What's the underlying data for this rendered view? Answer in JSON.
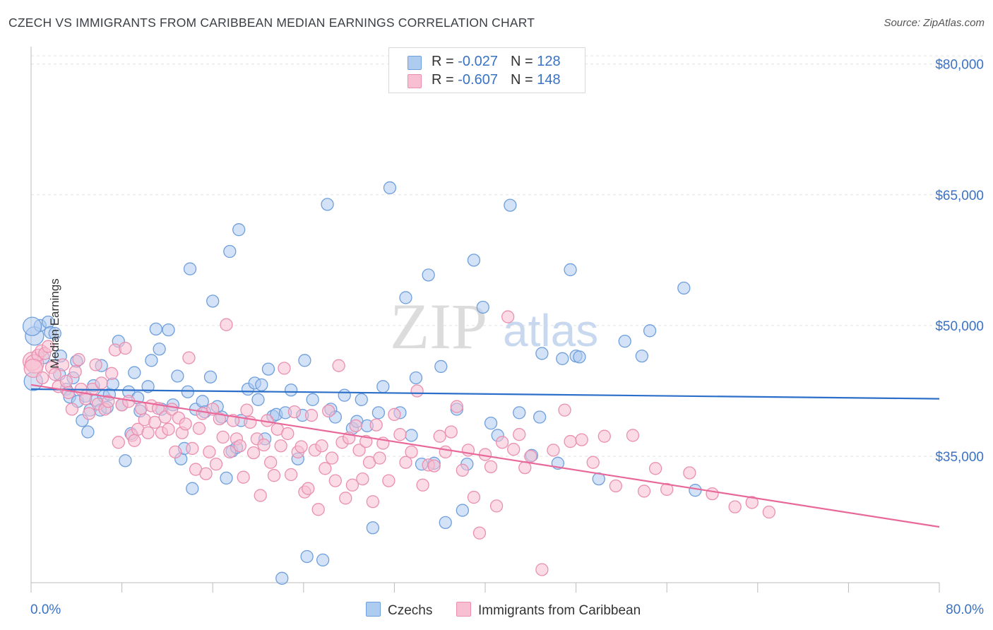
{
  "title": "CZECH VS IMMIGRANTS FROM CARIBBEAN MEDIAN EARNINGS CORRELATION CHART",
  "source": "Source: ZipAtlas.com",
  "watermark": {
    "zip": "ZIP",
    "atlas": "atlas"
  },
  "legend": {
    "rows": [
      {
        "r_label": "R = ",
        "r_value": "-0.027",
        "n_label": "N = ",
        "n_value": "128",
        "fill": "#aecbf0",
        "stroke": "#6f9fdc"
      },
      {
        "r_label": "R = ",
        "r_value": "-0.607",
        "n_label": "N = ",
        "n_value": "148",
        "fill": "#f7bfd1",
        "stroke": "#ea8fb0"
      }
    ]
  },
  "bottom_legend": {
    "czechs": "Czechs",
    "caribbean": "Immigrants from Caribbean"
  },
  "chart_data": {
    "type": "scatter",
    "ylabel": "Median Earnings",
    "xlim": [
      0,
      80
    ],
    "ylim": [
      20500,
      82000
    ],
    "x_tick_labels": {
      "left": "0.0%",
      "right": "80.0%"
    },
    "y_ticks": [
      {
        "value": 80000,
        "label": "$80,000"
      },
      {
        "value": 65000,
        "label": "$65,000"
      },
      {
        "value": 50000,
        "label": "$50,000"
      },
      {
        "value": 35000,
        "label": "$35,000"
      }
    ],
    "grid": true,
    "colors": {
      "blue_fill": "#aecbf0",
      "blue_stroke": "#6f9fdc",
      "blue_line": "#2c6fc9",
      "pink_fill": "#f7bfd1",
      "pink_stroke": "#ea8fb0",
      "pink_line": "#e8689a",
      "tick_label": "#3a72c4"
    },
    "series": [
      {
        "name": "Czechs",
        "trend": {
          "x": [
            0,
            80
          ],
          "y": [
            42700,
            41600
          ]
        },
        "points": [
          [
            0.2,
            43600
          ],
          [
            0.3,
            48800
          ],
          [
            0.8,
            50000
          ],
          [
            1.1,
            46300
          ],
          [
            1.5,
            50400
          ],
          [
            1.7,
            49200
          ],
          [
            2.1,
            49100
          ],
          [
            2.5,
            44400
          ],
          [
            2.6,
            46500
          ],
          [
            3.1,
            42700
          ],
          [
            3.4,
            41800
          ],
          [
            3.7,
            44000
          ],
          [
            4.0,
            45900
          ],
          [
            4.1,
            41300
          ],
          [
            4.5,
            39100
          ],
          [
            4.8,
            41900
          ],
          [
            5.0,
            37800
          ],
          [
            5.2,
            40300
          ],
          [
            5.5,
            43100
          ],
          [
            5.7,
            41400
          ],
          [
            6.2,
            45400
          ],
          [
            6.1,
            40300
          ],
          [
            6.4,
            41900
          ],
          [
            6.7,
            40600
          ],
          [
            6.9,
            42100
          ],
          [
            7.2,
            43300
          ],
          [
            7.7,
            48200
          ],
          [
            8.0,
            40900
          ],
          [
            8.3,
            34500
          ],
          [
            8.6,
            42400
          ],
          [
            8.8,
            37600
          ],
          [
            9.1,
            44600
          ],
          [
            9.4,
            41700
          ],
          [
            9.6,
            40200
          ],
          [
            10.3,
            43000
          ],
          [
            10.6,
            46000
          ],
          [
            11.0,
            49600
          ],
          [
            11.3,
            47300
          ],
          [
            11.5,
            40400
          ],
          [
            12.1,
            49500
          ],
          [
            12.5,
            40900
          ],
          [
            12.9,
            44200
          ],
          [
            13.2,
            34700
          ],
          [
            13.5,
            35900
          ],
          [
            13.8,
            42400
          ],
          [
            14.0,
            56500
          ],
          [
            14.2,
            31300
          ],
          [
            14.5,
            40400
          ],
          [
            15.1,
            41300
          ],
          [
            15.3,
            40100
          ],
          [
            15.8,
            44100
          ],
          [
            16.0,
            52800
          ],
          [
            16.4,
            40700
          ],
          [
            16.8,
            39500
          ],
          [
            17.2,
            32500
          ],
          [
            17.5,
            58500
          ],
          [
            17.7,
            35600
          ],
          [
            18.1,
            36000
          ],
          [
            18.3,
            61000
          ],
          [
            18.5,
            39100
          ],
          [
            19.1,
            42700
          ],
          [
            19.7,
            43400
          ],
          [
            20.0,
            41500
          ],
          [
            20.3,
            43200
          ],
          [
            20.6,
            37000
          ],
          [
            20.9,
            45000
          ],
          [
            21.3,
            39600
          ],
          [
            21.6,
            39800
          ],
          [
            22.1,
            21000
          ],
          [
            22.4,
            40000
          ],
          [
            22.9,
            42600
          ],
          [
            23.5,
            34700
          ],
          [
            23.9,
            39700
          ],
          [
            24.1,
            46000
          ],
          [
            24.3,
            23500
          ],
          [
            24.8,
            41500
          ],
          [
            25.7,
            23100
          ],
          [
            26.1,
            63900
          ],
          [
            26.4,
            40400
          ],
          [
            26.8,
            39500
          ],
          [
            27.6,
            42000
          ],
          [
            28.3,
            38200
          ],
          [
            28.7,
            39000
          ],
          [
            29.1,
            41500
          ],
          [
            29.6,
            38500
          ],
          [
            30.1,
            26800
          ],
          [
            30.6,
            40000
          ],
          [
            31.0,
            43000
          ],
          [
            31.6,
            65800
          ],
          [
            32.5,
            40000
          ],
          [
            33.0,
            53200
          ],
          [
            33.5,
            37400
          ],
          [
            33.9,
            44000
          ],
          [
            34.4,
            34100
          ],
          [
            35.0,
            55800
          ],
          [
            35.5,
            34200
          ],
          [
            36.1,
            45300
          ],
          [
            36.5,
            27400
          ],
          [
            37.5,
            40400
          ],
          [
            38.0,
            28800
          ],
          [
            38.4,
            34100
          ],
          [
            39.0,
            57500
          ],
          [
            39.8,
            52100
          ],
          [
            40.5,
            38800
          ],
          [
            41.1,
            37400
          ],
          [
            42.2,
            63800
          ],
          [
            43.0,
            40000
          ],
          [
            44.1,
            35100
          ],
          [
            44.8,
            39500
          ],
          [
            45.0,
            46800
          ],
          [
            46.4,
            34200
          ],
          [
            46.8,
            46200
          ],
          [
            47.5,
            56400
          ],
          [
            48.0,
            46500
          ],
          [
            48.3,
            46400
          ],
          [
            50.0,
            32400
          ],
          [
            52.3,
            48200
          ],
          [
            53.8,
            46500
          ],
          [
            54.5,
            49400
          ],
          [
            57.5,
            54300
          ],
          [
            58.5,
            31100
          ],
          [
            0.1,
            49900
          ]
        ]
      },
      {
        "name": "Immigrants from Caribbean",
        "trend": {
          "x": [
            0,
            80
          ],
          "y": [
            43200,
            26900
          ]
        },
        "points": [
          [
            0.1,
            45900
          ],
          [
            0.3,
            45600
          ],
          [
            0.6,
            46600
          ],
          [
            0.9,
            47100
          ],
          [
            1.2,
            46800
          ],
          [
            1.5,
            47600
          ],
          [
            1.8,
            45200
          ],
          [
            2.1,
            44400
          ],
          [
            2.4,
            43000
          ],
          [
            2.8,
            45500
          ],
          [
            3.1,
            43600
          ],
          [
            3.3,
            42300
          ],
          [
            3.6,
            40400
          ],
          [
            3.9,
            44700
          ],
          [
            4.2,
            46100
          ],
          [
            4.4,
            42700
          ],
          [
            4.8,
            41600
          ],
          [
            5.1,
            39900
          ],
          [
            5.4,
            42700
          ],
          [
            5.7,
            45500
          ],
          [
            5.9,
            41000
          ],
          [
            6.2,
            43400
          ],
          [
            6.5,
            40400
          ],
          [
            6.8,
            41300
          ],
          [
            7.1,
            44500
          ],
          [
            7.4,
            47200
          ],
          [
            7.7,
            36600
          ],
          [
            8.0,
            40900
          ],
          [
            8.3,
            47400
          ],
          [
            8.6,
            41300
          ],
          [
            8.9,
            37400
          ],
          [
            9.1,
            36800
          ],
          [
            9.4,
            38100
          ],
          [
            9.7,
            40500
          ],
          [
            10.0,
            39200
          ],
          [
            10.3,
            37700
          ],
          [
            10.6,
            40800
          ],
          [
            10.9,
            38900
          ],
          [
            11.2,
            40500
          ],
          [
            11.5,
            37700
          ],
          [
            11.8,
            39500
          ],
          [
            12.1,
            38100
          ],
          [
            12.4,
            40400
          ],
          [
            12.7,
            35500
          ],
          [
            13.0,
            39400
          ],
          [
            13.3,
            37700
          ],
          [
            13.6,
            38700
          ],
          [
            13.9,
            46300
          ],
          [
            14.2,
            35900
          ],
          [
            14.5,
            33500
          ],
          [
            14.8,
            38200
          ],
          [
            15.1,
            39900
          ],
          [
            15.4,
            33000
          ],
          [
            15.7,
            35500
          ],
          [
            16.0,
            40400
          ],
          [
            16.3,
            34100
          ],
          [
            16.6,
            39300
          ],
          [
            16.9,
            37200
          ],
          [
            17.2,
            50100
          ],
          [
            17.5,
            35500
          ],
          [
            17.8,
            39100
          ],
          [
            18.1,
            37000
          ],
          [
            18.4,
            36200
          ],
          [
            18.7,
            32600
          ],
          [
            19.0,
            40300
          ],
          [
            19.3,
            38900
          ],
          [
            19.6,
            35400
          ],
          [
            19.9,
            37000
          ],
          [
            20.2,
            30500
          ],
          [
            20.5,
            36300
          ],
          [
            20.8,
            39100
          ],
          [
            21.1,
            34300
          ],
          [
            21.4,
            32800
          ],
          [
            21.7,
            38100
          ],
          [
            22.0,
            36200
          ],
          [
            22.3,
            45100
          ],
          [
            22.6,
            37600
          ],
          [
            22.9,
            32900
          ],
          [
            23.2,
            40100
          ],
          [
            23.5,
            35500
          ],
          [
            23.8,
            36100
          ],
          [
            24.1,
            30900
          ],
          [
            24.4,
            31300
          ],
          [
            24.7,
            39700
          ],
          [
            25.0,
            35700
          ],
          [
            25.3,
            28900
          ],
          [
            25.6,
            36200
          ],
          [
            25.9,
            33600
          ],
          [
            26.2,
            40200
          ],
          [
            26.5,
            34800
          ],
          [
            26.8,
            32200
          ],
          [
            27.1,
            45400
          ],
          [
            27.4,
            36600
          ],
          [
            27.7,
            30200
          ],
          [
            28.0,
            37100
          ],
          [
            28.3,
            31700
          ],
          [
            28.6,
            38500
          ],
          [
            28.9,
            35700
          ],
          [
            29.2,
            32400
          ],
          [
            29.5,
            36700
          ],
          [
            29.8,
            34300
          ],
          [
            30.1,
            29800
          ],
          [
            30.4,
            38600
          ],
          [
            30.7,
            34800
          ],
          [
            31.0,
            36500
          ],
          [
            31.5,
            32200
          ],
          [
            32.0,
            39800
          ],
          [
            32.5,
            37500
          ],
          [
            33.0,
            34300
          ],
          [
            33.5,
            35500
          ],
          [
            34.0,
            42500
          ],
          [
            34.5,
            31700
          ],
          [
            35.0,
            34000
          ],
          [
            35.5,
            33900
          ],
          [
            36.0,
            37300
          ],
          [
            36.5,
            35500
          ],
          [
            37.0,
            37800
          ],
          [
            37.5,
            40700
          ],
          [
            38.0,
            33400
          ],
          [
            38.5,
            35700
          ],
          [
            39.0,
            30300
          ],
          [
            39.5,
            26200
          ],
          [
            40.0,
            35200
          ],
          [
            40.5,
            33800
          ],
          [
            41.0,
            29300
          ],
          [
            41.5,
            36600
          ],
          [
            42.0,
            51000
          ],
          [
            42.5,
            35800
          ],
          [
            43.0,
            37500
          ],
          [
            43.5,
            33700
          ],
          [
            44.0,
            35000
          ],
          [
            45.0,
            22000
          ],
          [
            46.0,
            35700
          ],
          [
            47.0,
            40300
          ],
          [
            47.5,
            36700
          ],
          [
            48.5,
            36900
          ],
          [
            49.5,
            34300
          ],
          [
            50.5,
            37300
          ],
          [
            51.5,
            31600
          ],
          [
            53.0,
            37400
          ],
          [
            54.0,
            31000
          ],
          [
            55.0,
            33600
          ],
          [
            56.0,
            31200
          ],
          [
            58.0,
            33100
          ],
          [
            60.0,
            30700
          ],
          [
            62.0,
            29200
          ],
          [
            63.5,
            29700
          ],
          [
            65.0,
            28600
          ],
          [
            0.2,
            45100
          ],
          [
            1.0,
            44000
          ]
        ]
      }
    ]
  }
}
